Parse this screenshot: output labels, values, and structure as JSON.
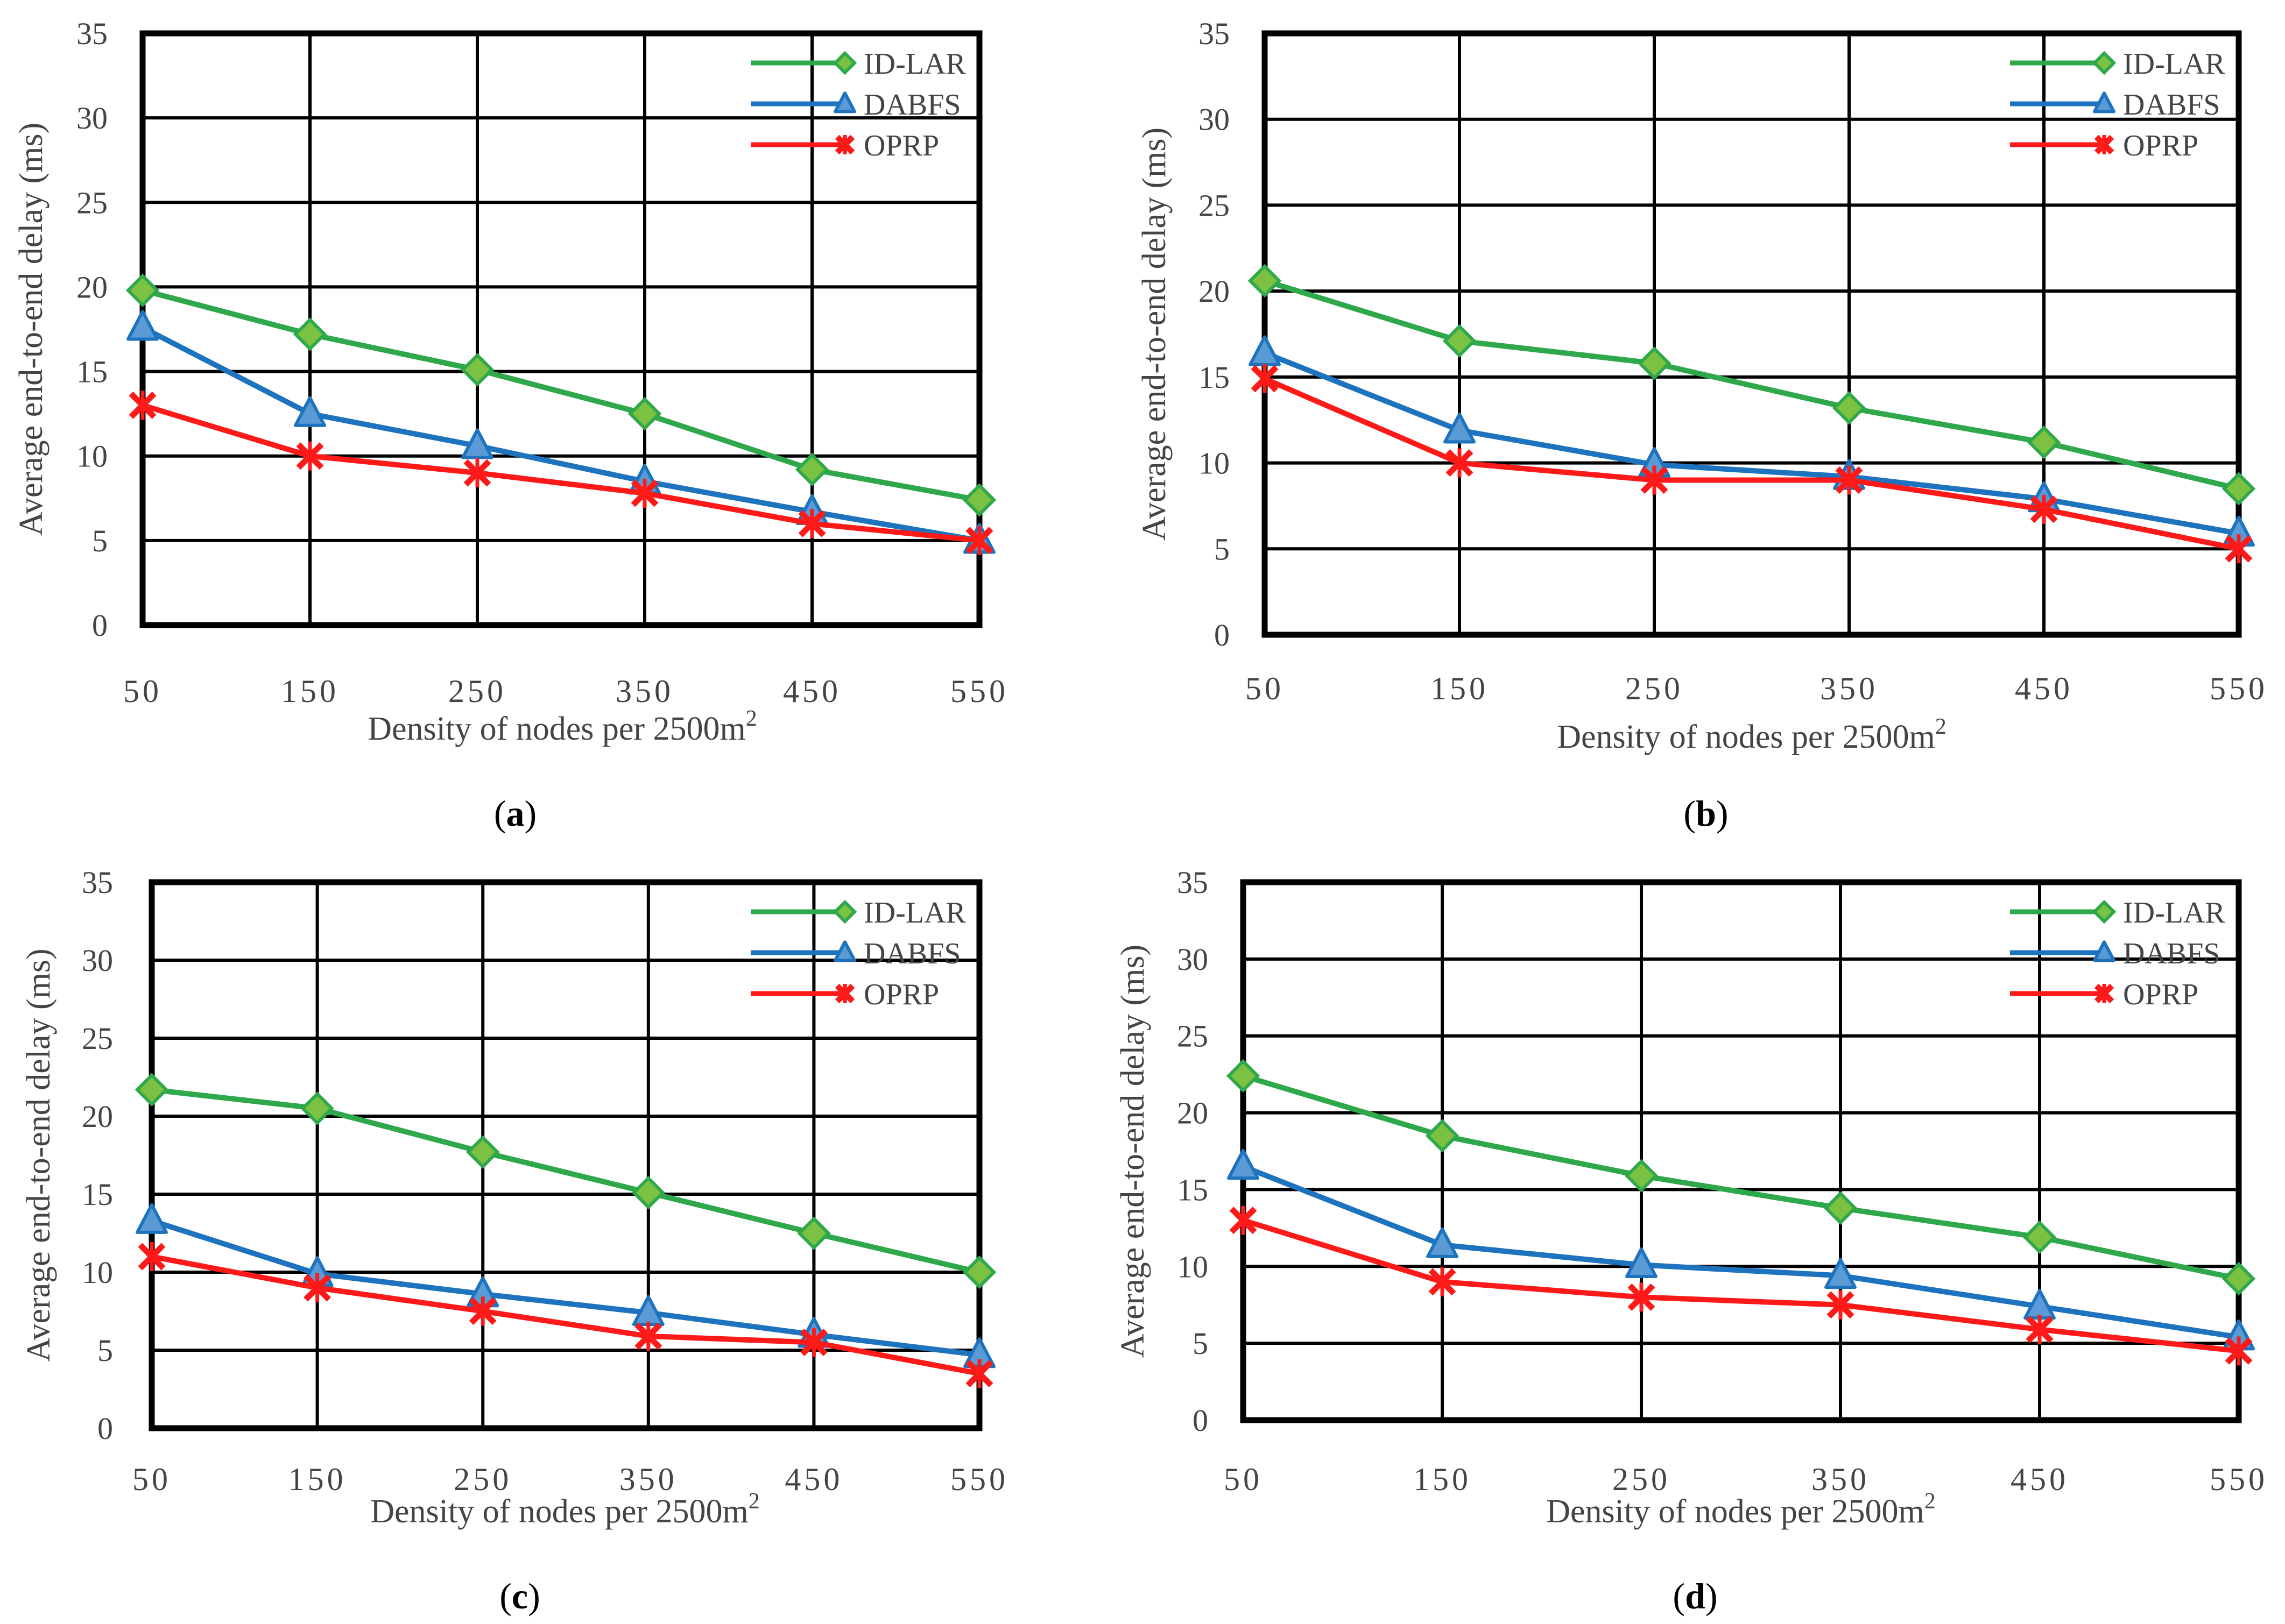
{
  "panel_label_prefix": "(",
  "panel_label_suffix": ")",
  "colors": {
    "ID-LAR": "#2ea84a",
    "DABFS": "#1e73be",
    "OPRP": "#ff1a1a",
    "grid": "#000000",
    "marker_fill_idlar": "#7cc242",
    "marker_fill_dabfs": "#5b9bd5"
  },
  "chart_data": [
    {
      "type": "line",
      "panel": "a",
      "title": "",
      "xlabel": "Density of nodes per 2500m",
      "xlabel_sup": "2",
      "ylabel": "Average end-to-end delay (ms)",
      "categories": [
        "50",
        "150",
        "250",
        "350",
        "450",
        "550"
      ],
      "x": [
        50,
        150,
        250,
        350,
        450,
        550
      ],
      "ylim": [
        0,
        35
      ],
      "yticks": [
        "0",
        "5",
        "10",
        "15",
        "20",
        "25",
        "30",
        "35"
      ],
      "grid": true,
      "legend": "top-right",
      "series": [
        {
          "name": "ID-LAR",
          "marker": "diamond",
          "values": [
            19.8,
            17.2,
            15.1,
            12.5,
            9.2,
            7.4
          ]
        },
        {
          "name": "DABFS",
          "marker": "triangle",
          "values": [
            17.6,
            12.5,
            10.6,
            8.5,
            6.7,
            5.0
          ]
        },
        {
          "name": "OPRP",
          "marker": "star",
          "values": [
            13.0,
            10.0,
            9.0,
            7.8,
            6.0,
            5.0
          ]
        }
      ]
    },
    {
      "type": "line",
      "panel": "b",
      "title": "",
      "xlabel": "Density of nodes per 2500m",
      "xlabel_sup": "2",
      "ylabel": "Average end-to-end delay (ms)",
      "categories": [
        "50",
        "150",
        "250",
        "350",
        "450",
        "550"
      ],
      "x": [
        50,
        150,
        250,
        350,
        450,
        550
      ],
      "ylim": [
        0,
        35
      ],
      "yticks": [
        "0",
        "5",
        "10",
        "15",
        "20",
        "25",
        "30",
        "35"
      ],
      "grid": true,
      "legend": "top-right",
      "series": [
        {
          "name": "ID-LAR",
          "marker": "diamond",
          "values": [
            20.6,
            17.1,
            15.8,
            13.2,
            11.2,
            8.5
          ]
        },
        {
          "name": "DABFS",
          "marker": "triangle",
          "values": [
            16.4,
            11.9,
            9.9,
            9.2,
            7.9,
            5.9
          ]
        },
        {
          "name": "OPRP",
          "marker": "star",
          "values": [
            14.9,
            10.0,
            9.0,
            9.0,
            7.3,
            5.0
          ]
        }
      ]
    },
    {
      "type": "line",
      "panel": "c",
      "title": "",
      "xlabel": "Density of nodes per 2500m",
      "xlabel_sup": "2",
      "ylabel": "Average end-to-end delay (ms)",
      "categories": [
        "50",
        "150",
        "250",
        "350",
        "450",
        "550"
      ],
      "x": [
        50,
        150,
        250,
        350,
        450,
        550
      ],
      "ylim": [
        0,
        35
      ],
      "yticks": [
        "0",
        "5",
        "10",
        "15",
        "20",
        "25",
        "30",
        "35"
      ],
      "grid": true,
      "legend": "top-right",
      "series": [
        {
          "name": "ID-LAR",
          "marker": "diamond",
          "values": [
            21.7,
            20.5,
            17.7,
            15.1,
            12.5,
            10.0
          ]
        },
        {
          "name": "DABFS",
          "marker": "triangle",
          "values": [
            13.3,
            9.9,
            8.6,
            7.4,
            6.0,
            4.7
          ]
        },
        {
          "name": "OPRP",
          "marker": "star",
          "values": [
            11.0,
            9.0,
            7.5,
            5.9,
            5.5,
            3.5
          ]
        }
      ]
    },
    {
      "type": "line",
      "panel": "d",
      "title": "",
      "xlabel": "Density of nodes per 2500m",
      "xlabel_sup": "2",
      "ylabel": "Average end-to-end delay (ms)",
      "categories": [
        "50",
        "150",
        "250",
        "350",
        "450",
        "550"
      ],
      "x": [
        50,
        150,
        250,
        350,
        450,
        550
      ],
      "ylim": [
        0,
        35
      ],
      "yticks": [
        "0",
        "5",
        "10",
        "15",
        "20",
        "25",
        "30",
        "35"
      ],
      "grid": true,
      "legend": "top-right",
      "series": [
        {
          "name": "ID-LAR",
          "marker": "diamond",
          "values": [
            22.4,
            18.5,
            15.9,
            13.8,
            11.9,
            9.2
          ]
        },
        {
          "name": "DABFS",
          "marker": "triangle",
          "values": [
            16.5,
            11.4,
            10.1,
            9.4,
            7.4,
            5.4
          ]
        },
        {
          "name": "OPRP",
          "marker": "star",
          "values": [
            13.0,
            9.0,
            8.0,
            7.5,
            5.9,
            4.5
          ]
        }
      ]
    }
  ]
}
